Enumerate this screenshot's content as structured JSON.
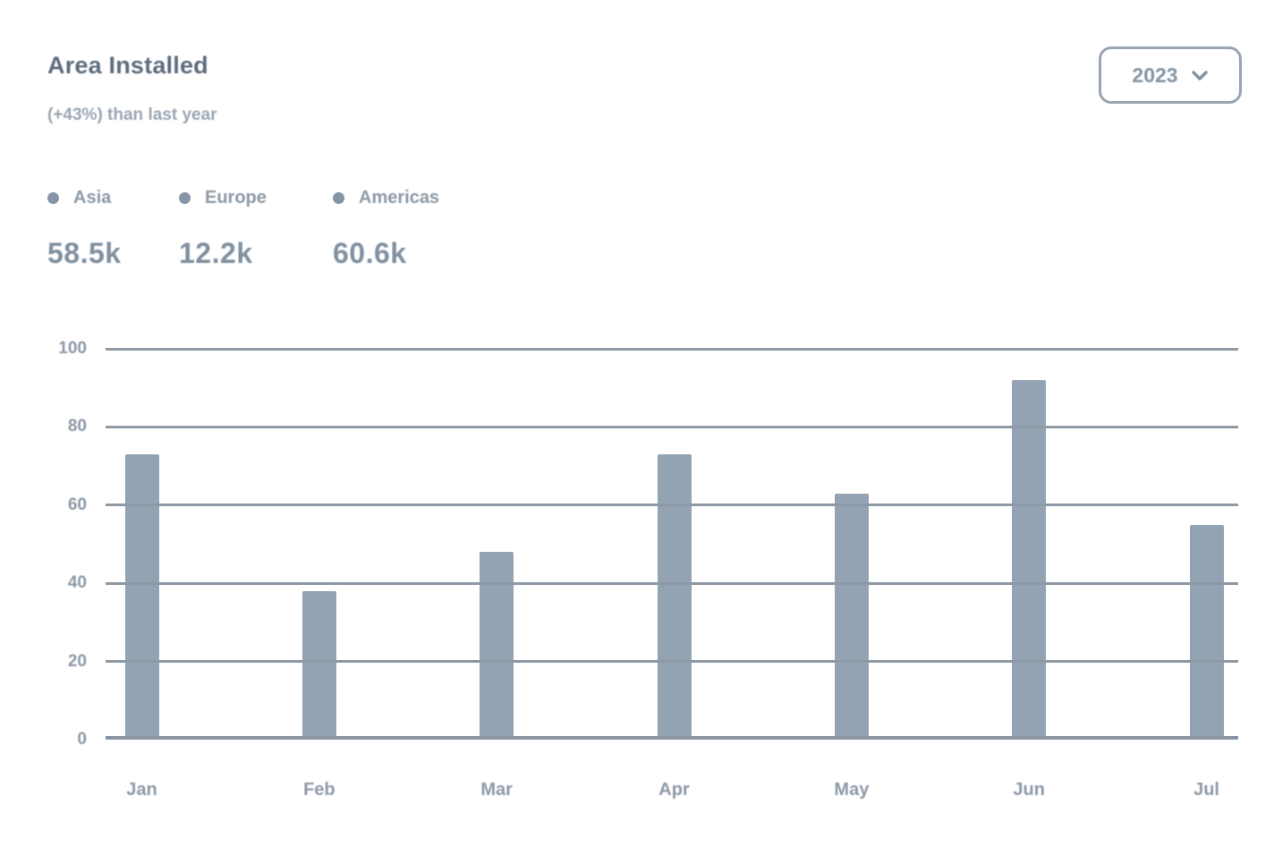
{
  "header": {
    "title": "Area Installed",
    "subtitle": "(+43%) than last year"
  },
  "year_select": {
    "value": "2023"
  },
  "summary": {
    "items": [
      {
        "label": "Asia",
        "value": "58.5k"
      },
      {
        "label": "Europe",
        "value": "12.2k"
      },
      {
        "label": "Americas",
        "value": "60.6k"
      }
    ]
  },
  "chart_data": {
    "type": "bar",
    "title": "Area Installed",
    "categories": [
      "Jan",
      "Feb",
      "Mar",
      "Apr",
      "May",
      "Jun",
      "Jul"
    ],
    "values": [
      73,
      38,
      48,
      73,
      63,
      92,
      55
    ],
    "xlabel": "",
    "ylabel": "",
    "ylim": [
      0,
      100
    ],
    "yticks": [
      0,
      20,
      40,
      60,
      80,
      100
    ],
    "grid": true,
    "gridlines_over_bars": true,
    "legend_position": "top-left",
    "bar_color": "#94a3b4",
    "grid_color": "#8e99a6",
    "label_color": "#8d99a6"
  }
}
